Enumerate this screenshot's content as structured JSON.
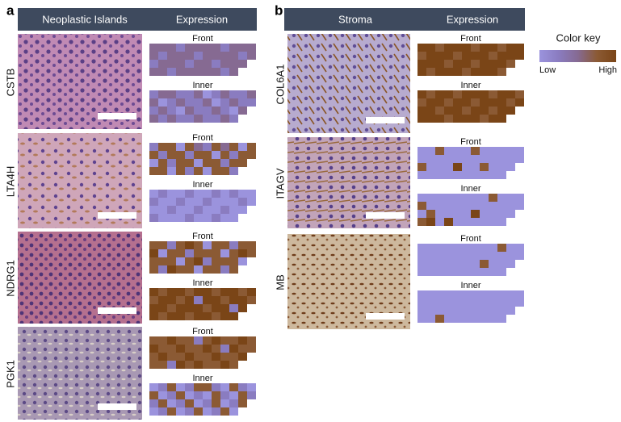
{
  "panels": [
    {
      "label": "a",
      "headers": [
        "Neoplastic Islands",
        "Expression"
      ],
      "genes": [
        {
          "name": "CSTB",
          "heatmaps": [
            {
              "label": "Front",
              "cells": [
                [
                  2,
                  2,
                  2,
                  1,
                  2,
                  2,
                  2,
                  2,
                  1,
                  2,
                  2,
                  2
                ],
                [
                  2,
                  1,
                  2,
                  2,
                  2,
                  1,
                  2,
                  2,
                  2,
                  2,
                  1,
                  2
                ],
                [
                  1,
                  2,
                  2,
                  2,
                  1,
                  2,
                  2,
                  1,
                  2,
                  2,
                  2,
                  null
                ],
                [
                  2,
                  2,
                  1,
                  2,
                  2,
                  2,
                  2,
                  2,
                  1,
                  2,
                  null,
                  null
                ]
              ]
            },
            {
              "label": "Inner",
              "cells": [
                [
                  1,
                  2,
                  2,
                  1,
                  1,
                  2,
                  0,
                  1,
                  2,
                  1,
                  1,
                  2
                ],
                [
                  2,
                  0,
                  1,
                  2,
                  1,
                  1,
                  2,
                  0,
                  1,
                  2,
                  1,
                  1
                ],
                [
                  1,
                  2,
                  1,
                  0,
                  2,
                  1,
                  1,
                  2,
                  1,
                  0,
                  2,
                  null
                ],
                [
                  2,
                  1,
                  2,
                  1,
                  1,
                  2,
                  1,
                  1,
                  2,
                  1,
                  null,
                  null
                ]
              ]
            }
          ]
        },
        {
          "name": "LTA4H",
          "heatmaps": [
            {
              "label": "Front",
              "cells": [
                [
                  1,
                  3,
                  3,
                  0,
                  3,
                  2,
                  1,
                  3,
                  2,
                  3,
                  0,
                  3
                ],
                [
                  3,
                  1,
                  3,
                  3,
                  1,
                  3,
                  3,
                  0,
                  3,
                  1,
                  3,
                  3
                ],
                [
                  0,
                  3,
                  1,
                  3,
                  3,
                  0,
                  3,
                  3,
                  1,
                  3,
                  3,
                  null
                ],
                [
                  3,
                  3,
                  0,
                  3,
                  1,
                  3,
                  0,
                  3,
                  3,
                  1,
                  null,
                  null
                ]
              ]
            },
            {
              "label": "Inner",
              "cells": [
                [
                  0,
                  1,
                  0,
                  0,
                  1,
                  0,
                  0,
                  1,
                  0,
                  1,
                  0,
                  0
                ],
                [
                  1,
                  0,
                  0,
                  1,
                  0,
                  0,
                  1,
                  0,
                  0,
                  0,
                  1,
                  0
                ],
                [
                  0,
                  0,
                  1,
                  0,
                  0,
                  1,
                  0,
                  0,
                  1,
                  0,
                  0,
                  null
                ],
                [
                  1,
                  0,
                  0,
                  0,
                  1,
                  0,
                  0,
                  1,
                  0,
                  0,
                  null,
                  null
                ]
              ]
            }
          ]
        },
        {
          "name": "NDRG1",
          "heatmaps": [
            {
              "label": "Front",
              "cells": [
                [
                  3,
                  3,
                  1,
                  3,
                  4,
                  3,
                  0,
                  3,
                  3,
                  1,
                  3,
                  3
                ],
                [
                  4,
                  0,
                  3,
                  3,
                  1,
                  3,
                  3,
                  3,
                  0,
                  3,
                  4,
                  3
                ],
                [
                  3,
                  3,
                  3,
                  0,
                  3,
                  4,
                  1,
                  3,
                  3,
                  3,
                  0,
                  null
                ],
                [
                  3,
                  1,
                  4,
                  3,
                  3,
                  0,
                  3,
                  3,
                  1,
                  3,
                  null,
                  null
                ]
              ]
            },
            {
              "label": "Inner",
              "cells": [
                [
                  4,
                  3,
                  4,
                  4,
                  3,
                  4,
                  4,
                  3,
                  4,
                  4,
                  3,
                  4
                ],
                [
                  3,
                  4,
                  4,
                  3,
                  4,
                  1,
                  4,
                  4,
                  3,
                  4,
                  4,
                  3
                ],
                [
                  4,
                  4,
                  3,
                  4,
                  4,
                  4,
                  3,
                  4,
                  4,
                  1,
                  4,
                  null
                ],
                [
                  4,
                  3,
                  4,
                  4,
                  3,
                  4,
                  4,
                  3,
                  4,
                  4,
                  null,
                  null
                ]
              ]
            }
          ]
        },
        {
          "name": "PGK1",
          "heatmaps": [
            {
              "label": "Front",
              "cells": [
                [
                  3,
                  3,
                  4,
                  3,
                  3,
                  1,
                  3,
                  4,
                  3,
                  3,
                  4,
                  3
                ],
                [
                  4,
                  3,
                  3,
                  4,
                  3,
                  3,
                  4,
                  3,
                  1,
                  4,
                  3,
                  3
                ],
                [
                  3,
                  4,
                  3,
                  3,
                  4,
                  3,
                  3,
                  4,
                  3,
                  3,
                  4,
                  null
                ],
                [
                  3,
                  3,
                  1,
                  4,
                  3,
                  4,
                  3,
                  3,
                  4,
                  3,
                  null,
                  null
                ]
              ]
            },
            {
              "label": "Inner",
              "cells": [
                [
                  0,
                  1,
                  3,
                  0,
                  1,
                  3,
                  3,
                  1,
                  0,
                  3,
                  1,
                  0
                ],
                [
                  3,
                  0,
                  1,
                  3,
                  0,
                  1,
                  0,
                  3,
                  1,
                  0,
                  3,
                  1
                ],
                [
                  1,
                  3,
                  0,
                  1,
                  3,
                  0,
                  1,
                  3,
                  0,
                  1,
                  3,
                  null
                ],
                [
                  0,
                  1,
                  3,
                  0,
                  1,
                  3,
                  0,
                  1,
                  3,
                  0,
                  null,
                  null
                ]
              ]
            }
          ]
        }
      ]
    },
    {
      "label": "b",
      "headers": [
        "Stroma",
        "Expression"
      ],
      "genes": [
        {
          "name": "COL6A1",
          "heatmaps": [
            {
              "label": "Front",
              "cells": [
                [
                  4,
                  4,
                  3,
                  4,
                  4,
                  4,
                  3,
                  4,
                  4,
                  3,
                  4,
                  4
                ],
                [
                  3,
                  4,
                  4,
                  4,
                  3,
                  4,
                  4,
                  4,
                  3,
                  4,
                  4,
                  4
                ],
                [
                  4,
                  4,
                  4,
                  3,
                  4,
                  4,
                  3,
                  4,
                  4,
                  4,
                  3,
                  null
                ],
                [
                  4,
                  3,
                  4,
                  4,
                  4,
                  3,
                  4,
                  4,
                  4,
                  3,
                  null,
                  null
                ]
              ]
            },
            {
              "label": "Inner",
              "cells": [
                [
                  4,
                  3,
                  4,
                  4,
                  3,
                  4,
                  4,
                  4,
                  3,
                  4,
                  4,
                  3
                ],
                [
                  3,
                  4,
                  4,
                  3,
                  4,
                  4,
                  3,
                  4,
                  4,
                  4,
                  3,
                  4
                ],
                [
                  4,
                  4,
                  3,
                  4,
                  4,
                  3,
                  4,
                  4,
                  3,
                  4,
                  4,
                  null
                ],
                [
                  4,
                  4,
                  4,
                  3,
                  4,
                  4,
                  4,
                  3,
                  4,
                  4,
                  null,
                  null
                ]
              ]
            }
          ]
        },
        {
          "name": "ITAGV",
          "heatmaps": [
            {
              "label": "Front",
              "cells": [
                [
                  0,
                  0,
                  3,
                  0,
                  0,
                  0,
                  3,
                  0,
                  0,
                  0,
                  0,
                  0
                ],
                [
                  0,
                  0,
                  0,
                  0,
                  0,
                  0,
                  0,
                  0,
                  0,
                  0,
                  0,
                  0
                ],
                [
                  3,
                  0,
                  0,
                  0,
                  4,
                  0,
                  0,
                  3,
                  0,
                  0,
                  0,
                  null
                ],
                [
                  0,
                  0,
                  0,
                  0,
                  0,
                  0,
                  0,
                  0,
                  0,
                  0,
                  null,
                  null
                ]
              ]
            },
            {
              "label": "Inner",
              "cells": [
                [
                  0,
                  0,
                  0,
                  0,
                  0,
                  0,
                  0,
                  0,
                  3,
                  0,
                  0,
                  0
                ],
                [
                  3,
                  0,
                  0,
                  0,
                  0,
                  0,
                  0,
                  0,
                  0,
                  0,
                  0,
                  0
                ],
                [
                  0,
                  3,
                  0,
                  0,
                  0,
                  0,
                  4,
                  0,
                  0,
                  0,
                  0,
                  null
                ],
                [
                  3,
                  4,
                  0,
                  4,
                  0,
                  0,
                  0,
                  0,
                  0,
                  0,
                  null,
                  null
                ]
              ]
            }
          ]
        },
        {
          "name": "MB",
          "heatmaps": [
            {
              "label": "Front",
              "cells": [
                [
                  0,
                  0,
                  0,
                  0,
                  0,
                  0,
                  0,
                  0,
                  0,
                  3,
                  0,
                  0
                ],
                [
                  0,
                  0,
                  0,
                  0,
                  0,
                  0,
                  0,
                  0,
                  0,
                  0,
                  0,
                  0
                ],
                [
                  0,
                  0,
                  0,
                  0,
                  0,
                  0,
                  0,
                  3,
                  0,
                  0,
                  0,
                  null
                ],
                [
                  0,
                  0,
                  0,
                  0,
                  0,
                  0,
                  0,
                  0,
                  0,
                  0,
                  null,
                  null
                ]
              ]
            },
            {
              "label": "Inner",
              "cells": [
                [
                  0,
                  0,
                  0,
                  0,
                  0,
                  0,
                  0,
                  0,
                  0,
                  0,
                  0,
                  0
                ],
                [
                  0,
                  0,
                  0,
                  0,
                  0,
                  0,
                  0,
                  0,
                  0,
                  0,
                  0,
                  0
                ],
                [
                  0,
                  0,
                  0,
                  0,
                  0,
                  0,
                  0,
                  0,
                  0,
                  0,
                  0,
                  null
                ],
                [
                  0,
                  0,
                  3,
                  0,
                  0,
                  0,
                  0,
                  0,
                  0,
                  0,
                  null,
                  null
                ]
              ]
            }
          ]
        }
      ]
    }
  ],
  "color_key": {
    "title": "Color key",
    "low": "Low",
    "high": "High",
    "colors": [
      "#9b93dd",
      "#8a7cc0",
      "#866a92",
      "#8b5a34",
      "#7a4517"
    ]
  }
}
